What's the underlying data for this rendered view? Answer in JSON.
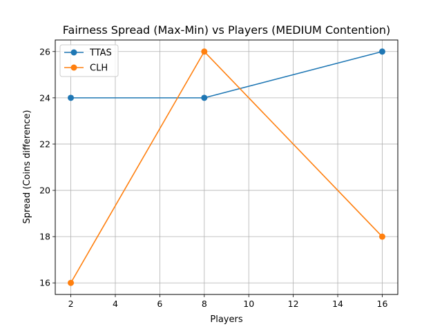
{
  "chart_data": {
    "type": "line",
    "title": "Fairness Spread (Max-Min) vs Players (MEDIUM Contention)",
    "xlabel": "Players",
    "ylabel": "Spread (Coins difference)",
    "x": [
      2,
      8,
      16
    ],
    "xlim": [
      1.3,
      16.7
    ],
    "ylim": [
      15.5,
      26.5
    ],
    "xticks": [
      "2",
      "4",
      "6",
      "8",
      "10",
      "12",
      "14",
      "16"
    ],
    "yticks": [
      "16",
      "18",
      "20",
      "22",
      "24",
      "26"
    ],
    "grid": true,
    "legend_position": "top-left",
    "series": [
      {
        "name": "TTAS",
        "values": [
          24,
          24,
          26
        ],
        "color": "#1f77b4",
        "marker": "circle"
      },
      {
        "name": "CLH",
        "values": [
          16,
          26,
          18
        ],
        "color": "#ff7f0e",
        "marker": "circle"
      }
    ]
  }
}
